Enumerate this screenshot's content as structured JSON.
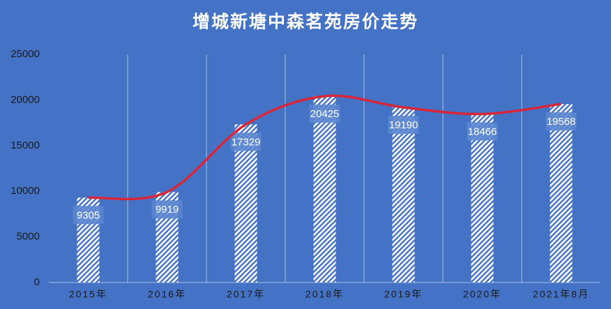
{
  "chart_data": {
    "type": "bar",
    "title": "增城新塘中森茗苑房价走势",
    "categories": [
      "2015年",
      "2016年",
      "2017年",
      "2018年",
      "2019年",
      "2020年",
      "2021年8月"
    ],
    "values": [
      9305,
      9919,
      17329,
      20425,
      19190,
      18466,
      19568
    ],
    "color": "#ffffff",
    "line_color": "#d9263a",
    "background": "#4472c4",
    "ylim": [
      0,
      25000
    ],
    "yticks": [
      0,
      5000,
      10000,
      15000,
      20000,
      25000
    ]
  }
}
